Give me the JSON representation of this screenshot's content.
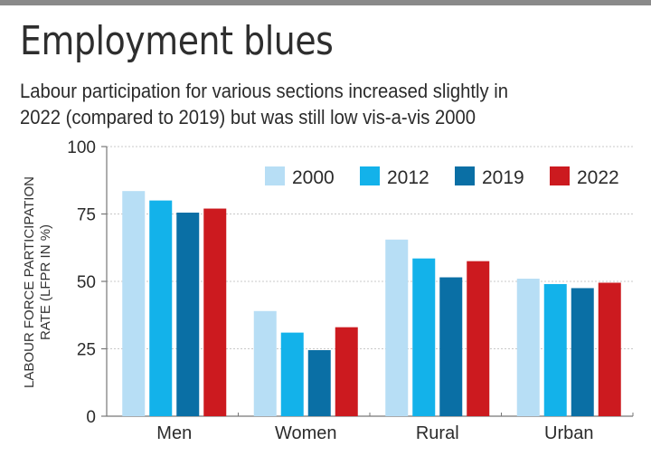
{
  "header": {
    "title": "Employment blues",
    "subtitle_line1": "Labour participation for various sections increased slightly in",
    "subtitle_line2": "2022 (compared to 2019) but was still low vis-a-vis 2000"
  },
  "chart_data": {
    "type": "bar",
    "title": "Employment blues",
    "subtitle": "Labour participation for various sections increased slightly in 2022 (compared to 2019) but was still low vis-a-vis 2000",
    "xlabel": "",
    "ylabel_line1": "LABOUR FORCE PARTICIPATION",
    "ylabel_line2": "RATE (LFPR IN %)",
    "ylim": [
      0,
      100
    ],
    "yticks": [
      0,
      25,
      50,
      75,
      100
    ],
    "grid": true,
    "legend_position": "top-right",
    "categories": [
      "Men",
      "Women",
      "Rural",
      "Urban"
    ],
    "series": [
      {
        "name": "2000",
        "color": "#b7def5",
        "values": [
          83.5,
          39,
          65.5,
          51
        ]
      },
      {
        "name": "2012",
        "color": "#13b2ea",
        "values": [
          80,
          31,
          58.5,
          49
        ]
      },
      {
        "name": "2019",
        "color": "#0a6fa5",
        "values": [
          75.5,
          24.5,
          51.5,
          47.5
        ]
      },
      {
        "name": "2022",
        "color": "#cc1a1f",
        "values": [
          77,
          33,
          57.5,
          49.5
        ]
      }
    ]
  }
}
